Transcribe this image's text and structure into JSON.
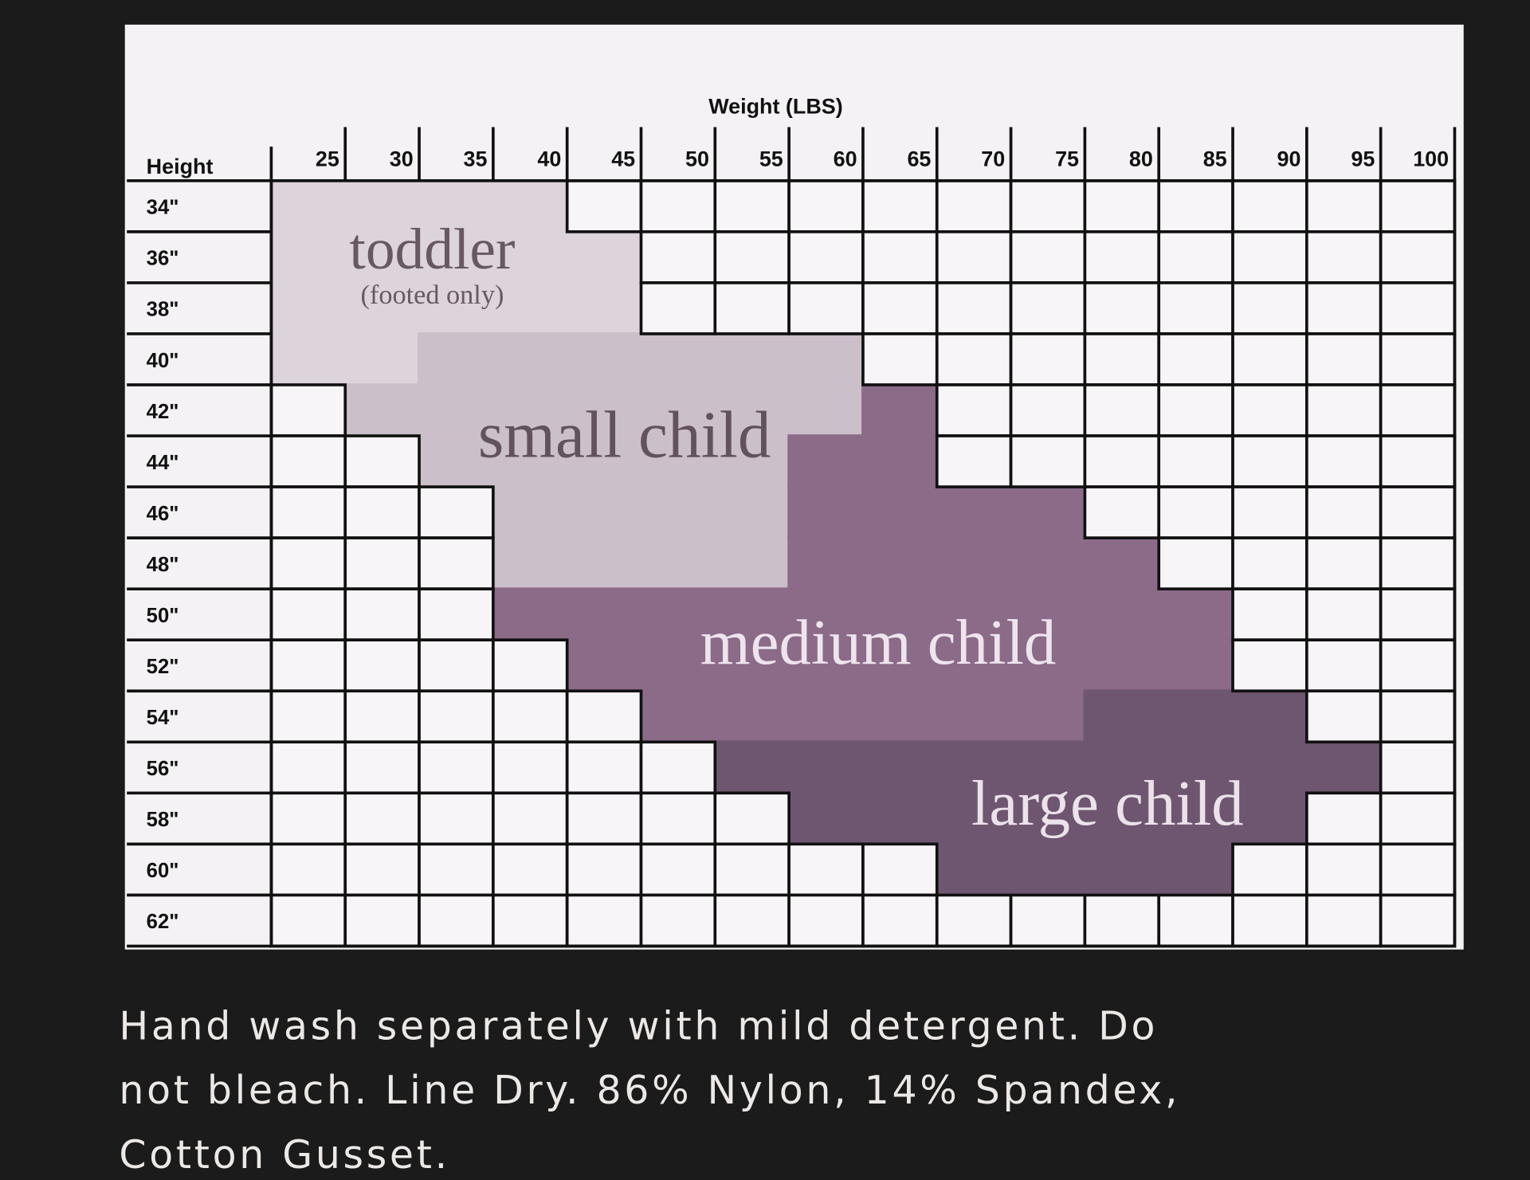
{
  "chart_title": "Weight (LBS)",
  "row_header": "Height",
  "weights": [
    "25",
    "30",
    "35",
    "40",
    "45",
    "50",
    "55",
    "60",
    "65",
    "70",
    "75",
    "80",
    "85",
    "90",
    "95",
    "100"
  ],
  "heights": [
    "34\"",
    "36\"",
    "38\"",
    "40\"",
    "42\"",
    "44\"",
    "46\"",
    "48\"",
    "50\"",
    "52\"",
    "54\"",
    "56\"",
    "58\"",
    "60\"",
    "62\""
  ],
  "regions": [
    {
      "label": "toddler",
      "sublabel": "(footed only)",
      "color": "#dcd3db",
      "text_color": "#675864",
      "spans": [
        [
          0,
          0,
          3
        ],
        [
          1,
          0,
          4
        ],
        [
          2,
          0,
          4
        ],
        [
          3,
          0,
          1
        ]
      ]
    },
    {
      "label": "small child",
      "color": "#cbbfca",
      "text_color": "#62525e",
      "spans": [
        [
          3,
          2,
          7
        ],
        [
          4,
          1,
          7
        ],
        [
          5,
          2,
          7
        ],
        [
          6,
          3,
          6
        ],
        [
          7,
          3,
          6
        ]
      ]
    },
    {
      "label": "medium child",
      "color": "#8b6b88",
      "text_color": "#eee4ee",
      "spans": [
        [
          4,
          8,
          8
        ],
        [
          5,
          7,
          8
        ],
        [
          6,
          7,
          10
        ],
        [
          7,
          7,
          11
        ],
        [
          8,
          3,
          12
        ],
        [
          9,
          4,
          12
        ],
        [
          10,
          5,
          10
        ]
      ]
    },
    {
      "label": "large child",
      "color": "#6f5670",
      "text_color": "#ebe2ea",
      "spans": [
        [
          10,
          11,
          13
        ],
        [
          11,
          6,
          14
        ],
        [
          12,
          7,
          13
        ],
        [
          13,
          9,
          12
        ]
      ]
    }
  ],
  "footer": [
    "Hand wash separately with mild detergent. Do",
    "not bleach. Line Dry.  86% Nylon, 14% Spandex,",
    "Cotton Gusset."
  ]
}
